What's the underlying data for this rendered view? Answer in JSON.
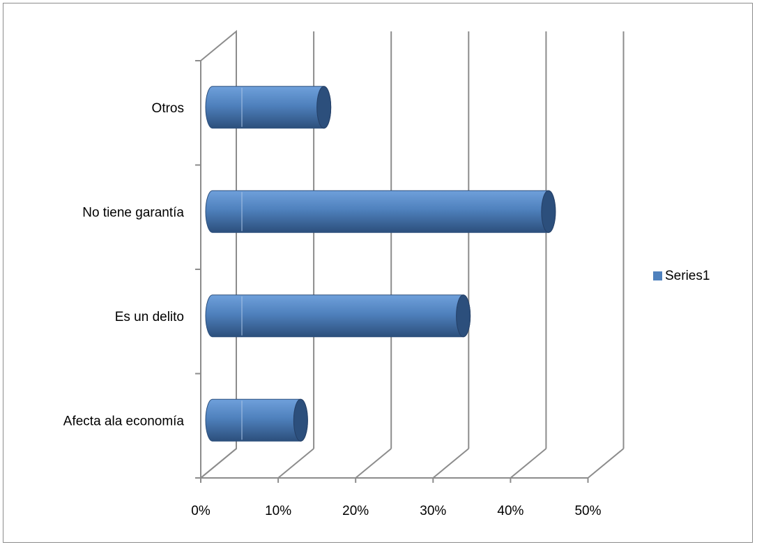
{
  "chart_data": {
    "type": "bar",
    "orientation": "horizontal",
    "style": "3d-cylinder",
    "title": "",
    "xlabel": "",
    "ylabel": "",
    "categories": [
      "Afecta ala economía",
      "Es un delito",
      "No tiene garantía",
      "Otros"
    ],
    "series": [
      {
        "name": "Series1",
        "values": [
          0.12,
          0.33,
          0.44,
          0.15
        ]
      }
    ],
    "xlim": [
      0,
      0.5
    ],
    "x_ticks": [
      0,
      0.1,
      0.2,
      0.3,
      0.4,
      0.5
    ],
    "x_tick_labels": [
      "0%",
      "10%",
      "20%",
      "30%",
      "40%",
      "50%"
    ],
    "grid": true,
    "legend_position": "right",
    "colors": {
      "bar": "#4f81bd",
      "bar_light": "#6fa0db",
      "bar_dark": "#2c4f7c",
      "grid": "#8c8c8c"
    }
  }
}
